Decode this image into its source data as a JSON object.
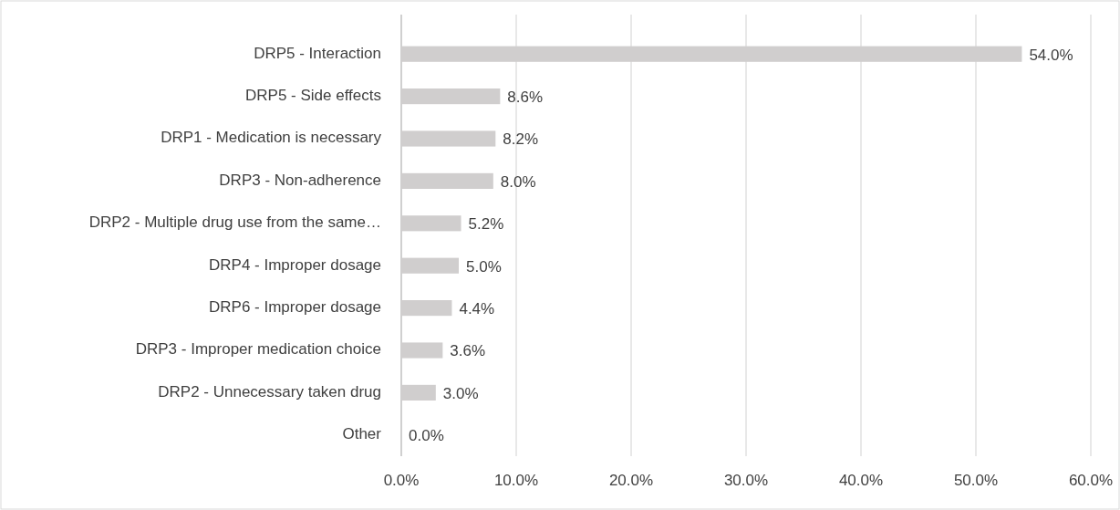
{
  "chart_data": {
    "type": "bar",
    "orientation": "horizontal",
    "categories": [
      "DRP5 - Interaction",
      "DRP5 - Side effects",
      "DRP1 - Medication is necessary",
      "DRP3 - Non-adherence",
      "DRP2 - Multiple drug use from the same…",
      "DRP4 - Improper dosage",
      "DRP6 - Improper dosage",
      "DRP3 - Improper medication choice",
      "DRP2 - Unnecessary taken drug",
      "Other"
    ],
    "values": [
      54.0,
      8.6,
      8.2,
      8.0,
      5.2,
      5.0,
      4.4,
      3.6,
      3.0,
      0.0
    ],
    "value_labels": [
      "54.0%",
      "8.6%",
      "8.2%",
      "8.0%",
      "5.2%",
      "5.0%",
      "4.4%",
      "3.6%",
      "3.0%",
      "0.0%"
    ],
    "color": "#d0cece",
    "xlim": [
      0,
      60
    ],
    "xticks": [
      {
        "value": 0,
        "label": "0.0%"
      },
      {
        "value": 10,
        "label": "10.0%"
      },
      {
        "value": 20,
        "label": "20.0%"
      },
      {
        "value": 30,
        "label": "30.0%"
      },
      {
        "value": 40,
        "label": "40.0%"
      },
      {
        "value": 50,
        "label": "50.0%"
      },
      {
        "value": 60,
        "label": "60.0%"
      }
    ],
    "grid": "x"
  }
}
